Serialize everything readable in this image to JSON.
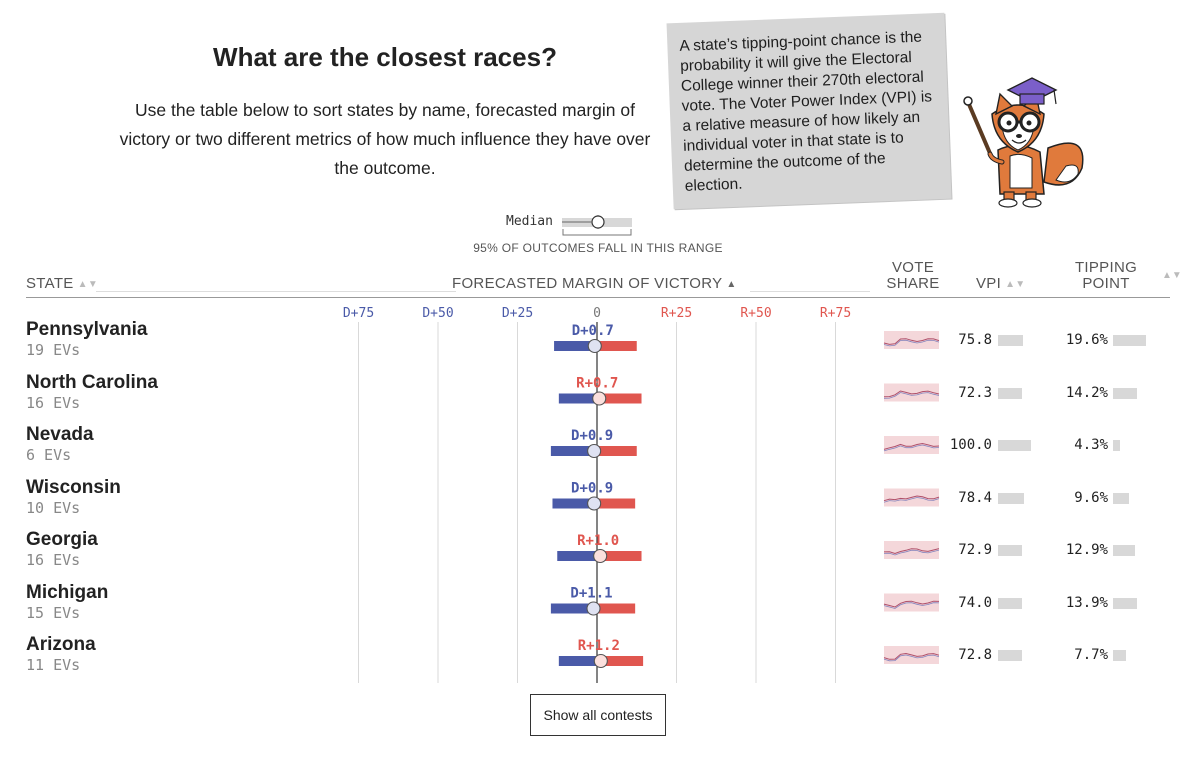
{
  "header": {
    "title": "What are the closest races?",
    "intro": "Use the table below to sort states by name, forecasted margin of victory or two different metrics of how much influence they have over the outcome."
  },
  "callout": {
    "text": "A state’s tipping-point chance is the probability it will give the Electoral College winner their 270th electoral vote. The Voter Power Index (VPI) is a relative measure of how likely an individual voter in that state is to determine the outcome of the election."
  },
  "legend": {
    "median_label": "Median",
    "caption": "95% OF OUTCOMES FALL IN THIS RANGE"
  },
  "columns": {
    "state": "STATE",
    "margin": "FORECASTED MARGIN OF VICTORY",
    "vote_share_1": "VOTE",
    "vote_share_2": "SHARE",
    "vpi": "VPI",
    "tipping_1": "TIPPING",
    "tipping_2": "POINT"
  },
  "colors": {
    "dem": "#4a5aa8",
    "rep": "#e0564f",
    "grid": "#d9d9d9",
    "bar_gray": "#d8d8d8"
  },
  "chart_data": {
    "type": "bar",
    "xlim": [
      -100,
      100
    ],
    "ticks": [
      {
        "value": -75,
        "label": "D+75"
      },
      {
        "value": -50,
        "label": "D+50"
      },
      {
        "value": -25,
        "label": "D+25"
      },
      {
        "value": 0,
        "label": "0"
      },
      {
        "value": 25,
        "label": "R+25"
      },
      {
        "value": 50,
        "label": "R+50"
      },
      {
        "value": 75,
        "label": "R+75"
      }
    ],
    "rows": [
      {
        "state": "Pennsylvania",
        "evs": "19 EVs",
        "median": -0.7,
        "label": "D+0.7",
        "low": -13.5,
        "high": 12.5,
        "vpi": 75.8,
        "vpi_label": "75.8",
        "tipping": 19.6,
        "tipping_label": "19.6%"
      },
      {
        "state": "North Carolina",
        "evs": "16 EVs",
        "median": 0.7,
        "label": "R+0.7",
        "low": -12.0,
        "high": 14.0,
        "vpi": 72.3,
        "vpi_label": "72.3",
        "tipping": 14.2,
        "tipping_label": "14.2%"
      },
      {
        "state": "Nevada",
        "evs": "6 EVs",
        "median": -0.9,
        "label": "D+0.9",
        "low": -14.5,
        "high": 12.5,
        "vpi": 100.0,
        "vpi_label": "100.0",
        "tipping": 4.3,
        "tipping_label": "4.3%"
      },
      {
        "state": "Wisconsin",
        "evs": "10 EVs",
        "median": -0.9,
        "label": "D+0.9",
        "low": -14.0,
        "high": 12.0,
        "vpi": 78.4,
        "vpi_label": "78.4",
        "tipping": 9.6,
        "tipping_label": "9.6%"
      },
      {
        "state": "Georgia",
        "evs": "16 EVs",
        "median": 1.0,
        "label": "R+1.0",
        "low": -12.5,
        "high": 14.0,
        "vpi": 72.9,
        "vpi_label": "72.9",
        "tipping": 12.9,
        "tipping_label": "12.9%"
      },
      {
        "state": "Michigan",
        "evs": "15 EVs",
        "median": -1.1,
        "label": "D+1.1",
        "low": -14.5,
        "high": 12.0,
        "vpi": 74.0,
        "vpi_label": "74.0",
        "tipping": 13.9,
        "tipping_label": "13.9%"
      },
      {
        "state": "Arizona",
        "evs": "11 EVs",
        "median": 1.2,
        "label": "R+1.2",
        "low": -12.0,
        "high": 14.5,
        "vpi": 72.8,
        "vpi_label": "72.8",
        "tipping": 7.7,
        "tipping_label": "7.7%"
      }
    ]
  },
  "footer": {
    "show_all_label": "Show all contests"
  }
}
